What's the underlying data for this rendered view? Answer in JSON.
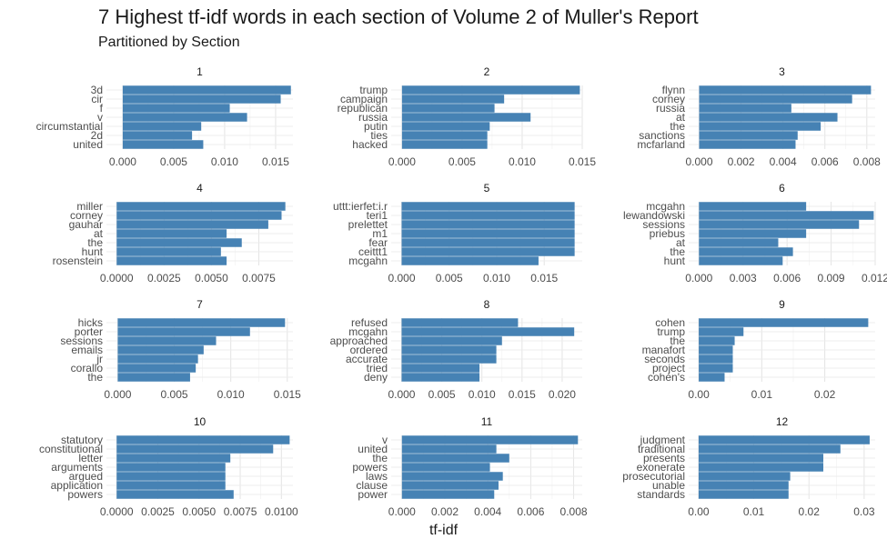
{
  "chart_data": {
    "type": "bar",
    "orientation": "horizontal",
    "title": "7 Highest tf-idf words in each section of Volume 2 of Muller's Report",
    "subtitle": "Partitioned by Section",
    "xlabel": "tf-idf",
    "ylabel": "",
    "bar_color": "#4682b4",
    "grid": true,
    "legend": "none",
    "facets": [
      {
        "label": "1",
        "xlim": [
          -0.0016,
          0.0167
        ],
        "ticks": [
          0.0,
          0.005,
          0.01,
          0.015
        ],
        "tick_labels": [
          "0.000",
          "0.005",
          "0.010",
          "0.015"
        ],
        "categories": [
          "3d",
          "cir",
          "f",
          "v",
          "circumstantial",
          "2d",
          "united"
        ],
        "values": [
          0.0165,
          0.0155,
          0.0105,
          0.0122,
          0.0077,
          0.0068,
          0.0079
        ]
      },
      {
        "label": "2",
        "xlim": [
          -0.0009,
          0.015
        ],
        "ticks": [
          0.0,
          0.005,
          0.01,
          0.015
        ],
        "tick_labels": [
          "0.000",
          "0.005",
          "0.010",
          "0.015"
        ],
        "categories": [
          "trump",
          "campaign",
          "republican",
          "russia",
          "putin",
          "ties",
          "hacked"
        ],
        "values": [
          0.0148,
          0.0085,
          0.0077,
          0.0107,
          0.0073,
          0.0071,
          0.0071
        ]
      },
      {
        "label": "3",
        "xlim": [
          -0.0005,
          0.0084
        ],
        "ticks": [
          0.0,
          0.002,
          0.004,
          0.006,
          0.008
        ],
        "tick_labels": [
          "0.000",
          "0.002",
          "0.004",
          "0.006",
          "0.008"
        ],
        "categories": [
          "flynn",
          "corney",
          "russia",
          "at",
          "the",
          "sanctions",
          "mcfarland"
        ],
        "values": [
          0.0082,
          0.0073,
          0.0044,
          0.0066,
          0.0058,
          0.0047,
          0.0046
        ]
      },
      {
        "label": "4",
        "xlim": [
          -0.00054,
          0.0093
        ],
        "ticks": [
          0.0,
          0.0025,
          0.005,
          0.0075
        ],
        "tick_labels": [
          "0.0000",
          "0.0025",
          "0.0050",
          "0.0075"
        ],
        "categories": [
          "miller",
          "corney",
          "gauhar",
          "at",
          "the",
          "hunt",
          "rosenstein"
        ],
        "values": [
          0.0089,
          0.0087,
          0.008,
          0.0058,
          0.0066,
          0.0055,
          0.0058
        ]
      },
      {
        "label": "5",
        "xlim": [
          -0.0011,
          0.019
        ],
        "ticks": [
          0.0,
          0.005,
          0.01,
          0.015
        ],
        "tick_labels": [
          "0.000",
          "0.005",
          "0.010",
          "0.015"
        ],
        "categories": [
          "uttt:ierfet:i.r",
          "teri1",
          "prelettet",
          "m1",
          "fear",
          "ceittt1",
          "mcgahn"
        ],
        "values": [
          0.0182,
          0.0182,
          0.0182,
          0.0182,
          0.0182,
          0.0182,
          0.0144
        ]
      },
      {
        "label": "6",
        "xlim": [
          -0.0007,
          0.012
        ],
        "ticks": [
          0.0,
          0.003,
          0.006,
          0.009,
          0.012
        ],
        "tick_labels": [
          "0.000",
          "0.003",
          "0.006",
          "0.009",
          "0.012"
        ],
        "categories": [
          "mcgahn",
          "lewandowski",
          "sessions",
          "priebus",
          "at",
          "the",
          "hunt"
        ],
        "values": [
          0.0073,
          0.0119,
          0.0109,
          0.0073,
          0.0054,
          0.0064,
          0.0057
        ]
      },
      {
        "label": "7",
        "xlim": [
          -0.001,
          0.0155
        ],
        "ticks": [
          0.0,
          0.005,
          0.01,
          0.015
        ],
        "tick_labels": [
          "0.000",
          "0.005",
          "0.010",
          "0.015"
        ],
        "categories": [
          "hicks",
          "porter",
          "sessions",
          "emails",
          "jr",
          "corallo",
          "the"
        ],
        "values": [
          0.0148,
          0.0117,
          0.0087,
          0.0076,
          0.0071,
          0.0069,
          0.0064
        ]
      },
      {
        "label": "8",
        "xlim": [
          -0.0013,
          0.0225
        ],
        "ticks": [
          0.0,
          0.005,
          0.01,
          0.015,
          0.02
        ],
        "tick_labels": [
          "0.000",
          "0.005",
          "0.010",
          "0.015",
          "0.020"
        ],
        "categories": [
          "refused",
          "mcgahn",
          "approached",
          "ordered",
          "accurate",
          "tried",
          "deny"
        ],
        "values": [
          0.0145,
          0.0215,
          0.0125,
          0.0118,
          0.0118,
          0.0097,
          0.0097
        ]
      },
      {
        "label": "9",
        "xlim": [
          -0.0016,
          0.028
        ],
        "ticks": [
          0.0,
          0.01,
          0.02
        ],
        "tick_labels": [
          "0.00",
          "0.01",
          "0.02"
        ],
        "categories": [
          "cohen",
          "trump",
          "the",
          "manafort",
          "seconds",
          "project",
          "cohen's"
        ],
        "values": [
          0.0269,
          0.0071,
          0.0057,
          0.0054,
          0.0054,
          0.0054,
          0.0041
        ]
      },
      {
        "label": "10",
        "xlim": [
          -0.00062,
          0.0107
        ],
        "ticks": [
          0.0,
          0.0025,
          0.005,
          0.0075,
          0.01
        ],
        "tick_labels": [
          "0.0000",
          "0.0025",
          "0.0050",
          "0.0075",
          "0.0100"
        ],
        "categories": [
          "statutory",
          "constitutional",
          "letter",
          "arguments",
          "argued",
          "application",
          "powers"
        ],
        "values": [
          0.0105,
          0.0095,
          0.0069,
          0.0066,
          0.0066,
          0.0066,
          0.0071
        ]
      },
      {
        "label": "11",
        "xlim": [
          -0.0005,
          0.0084
        ],
        "ticks": [
          0.0,
          0.002,
          0.004,
          0.006,
          0.008
        ],
        "tick_labels": [
          "0.000",
          "0.002",
          "0.004",
          "0.006",
          "0.008"
        ],
        "categories": [
          "v",
          "united",
          "the",
          "powers",
          "laws",
          "clause",
          "power"
        ],
        "values": [
          0.0082,
          0.0044,
          0.005,
          0.0041,
          0.0047,
          0.0045,
          0.0043
        ]
      },
      {
        "label": "12",
        "xlim": [
          -0.0018,
          0.032
        ],
        "ticks": [
          0.0,
          0.01,
          0.02,
          0.03
        ],
        "tick_labels": [
          "0.00",
          "0.01",
          "0.02",
          "0.03"
        ],
        "categories": [
          "judgment",
          "traditional",
          "presents",
          "exonerate",
          "prosecutorial",
          "unable",
          "standards"
        ],
        "values": [
          0.031,
          0.0257,
          0.0226,
          0.0226,
          0.0166,
          0.0163,
          0.0163
        ]
      }
    ]
  }
}
